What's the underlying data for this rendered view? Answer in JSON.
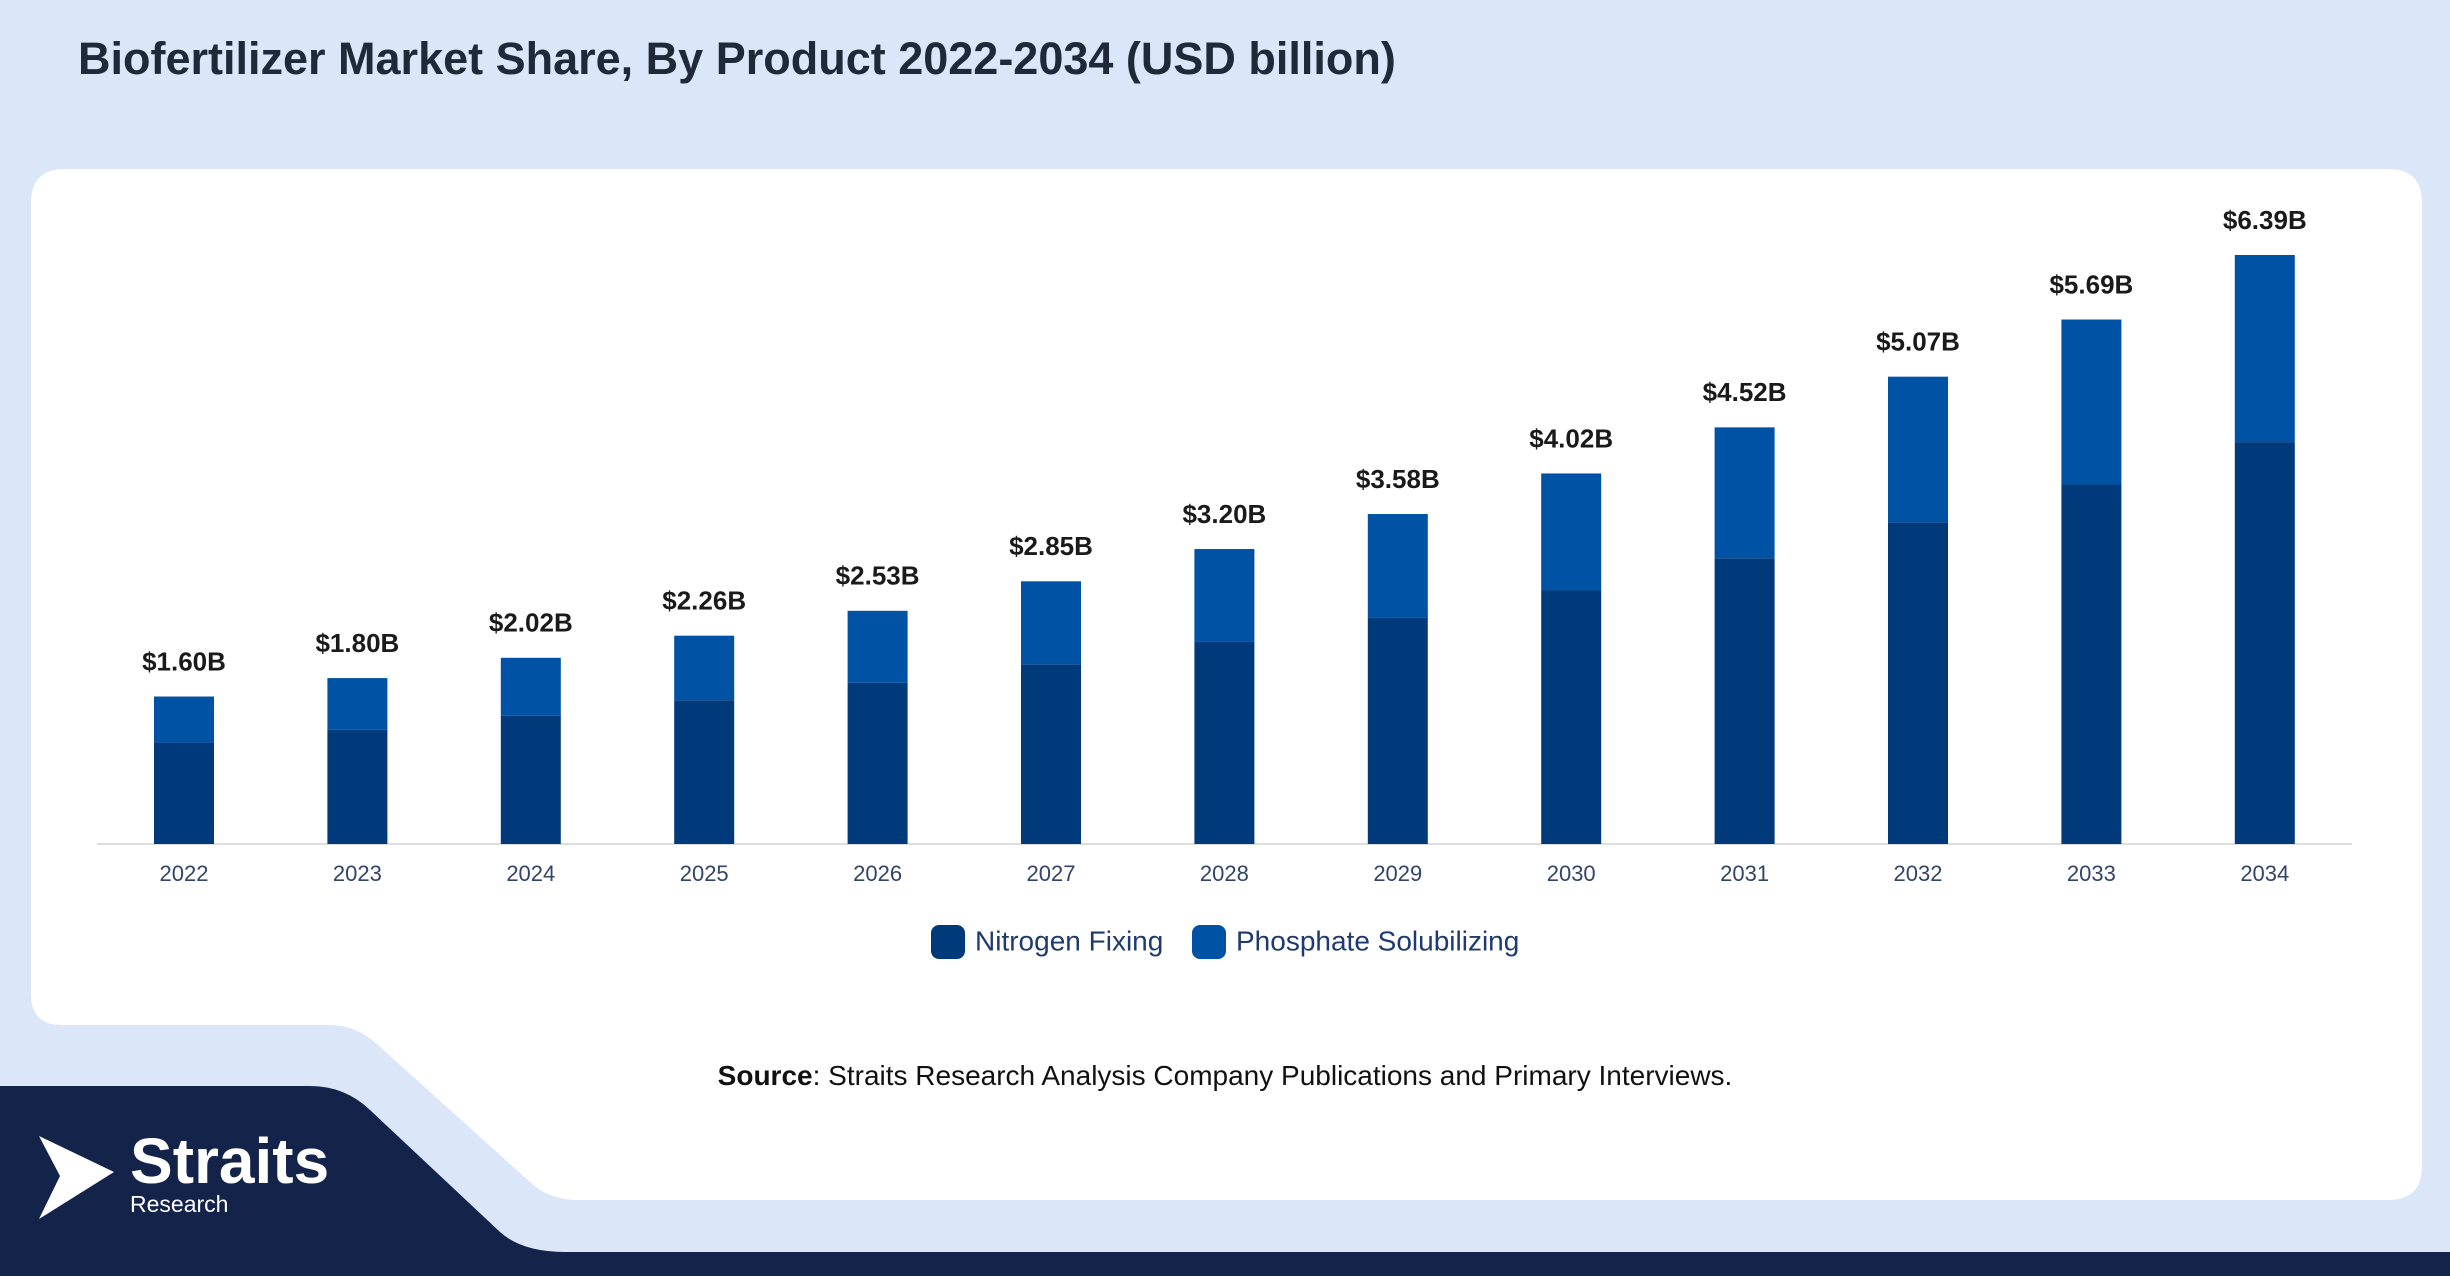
{
  "chart_data": {
    "type": "stacked_bar",
    "title": "Biofertilizer Market Share, By Product 2022-2034 (USD billion)",
    "categories": [
      "2022",
      "2023",
      "2024",
      "2025",
      "2026",
      "2027",
      "2028",
      "2029",
      "2030",
      "2031",
      "2032",
      "2033",
      "2034"
    ],
    "series": [
      {
        "name": "Nitrogen Fixing",
        "color": "#003a7a",
        "values": [
          1.1,
          1.24,
          1.39,
          1.56,
          1.75,
          1.95,
          2.2,
          2.46,
          2.75,
          3.1,
          3.49,
          3.9,
          4.36
        ]
      },
      {
        "name": "Phosphate Solubilizing",
        "color": "#0052a5",
        "values": [
          0.5,
          0.56,
          0.63,
          0.7,
          0.78,
          0.9,
          1.0,
          1.12,
          1.27,
          1.42,
          1.58,
          1.79,
          2.03
        ]
      }
    ],
    "totals": {
      "values": [
        1.6,
        1.8,
        2.02,
        2.26,
        2.53,
        2.85,
        3.2,
        3.58,
        4.02,
        4.52,
        5.07,
        5.69,
        6.39
      ],
      "value_labels": [
        "$1.60B",
        "$1.80B",
        "$2.02B",
        "$2.26B",
        "$2.53B",
        "$2.85B",
        "$3.20B",
        "$3.58B",
        "$4.02B",
        "$4.52B",
        "$5.07B",
        "$5.69B",
        "$6.39B"
      ]
    },
    "source": {
      "label": "Source",
      "text": ": Straits Research Analysis Company Publications and Primary Interviews."
    }
  },
  "logo": {
    "name": "Straits",
    "tagline": "Research"
  }
}
